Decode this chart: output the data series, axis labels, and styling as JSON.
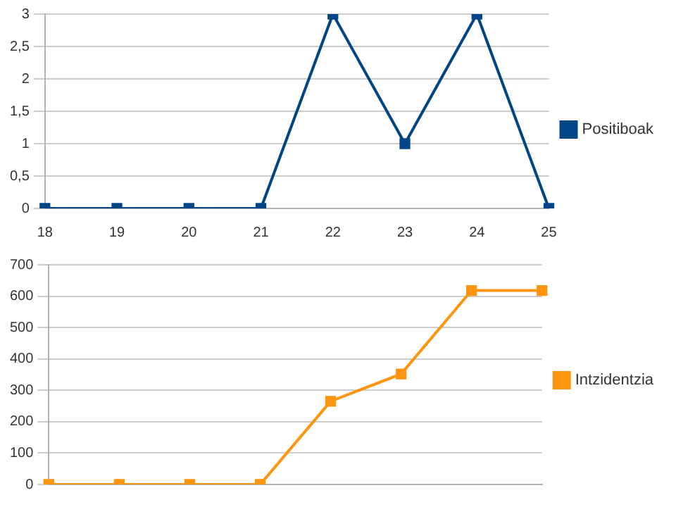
{
  "chart_data": [
    {
      "type": "line",
      "categories": [
        "18",
        "19",
        "20",
        "21",
        "22",
        "23",
        "24",
        "25"
      ],
      "series": [
        {
          "name": "Positiboak",
          "color": "#004586",
          "values": [
            0,
            0,
            0,
            0,
            3,
            1,
            3,
            0
          ]
        }
      ],
      "ylim": [
        0,
        3
      ],
      "yticks": [
        0,
        {
          "value": 0.5,
          "label": "0,5"
        },
        1,
        {
          "value": 1.5,
          "label": "1,5"
        },
        2,
        {
          "value": 2.5,
          "label": "2,5"
        },
        3
      ],
      "grid": "y",
      "legend": "right",
      "marker": "square",
      "line_style": "solid"
    },
    {
      "type": "line",
      "categories": [
        null,
        null,
        null,
        null,
        null,
        null,
        null,
        null
      ],
      "series": [
        {
          "name": "Intzidentzia",
          "color": "#ff950e",
          "values": [
            0,
            0,
            0,
            0,
            265,
            352,
            618,
            618
          ]
        }
      ],
      "ylim": [
        0,
        700
      ],
      "yticks": [
        0,
        100,
        200,
        300,
        400,
        500,
        600,
        700
      ],
      "grid": "y",
      "legend": "right",
      "marker": "square",
      "line_style": "solid",
      "tick_labels": "y"
    }
  ]
}
